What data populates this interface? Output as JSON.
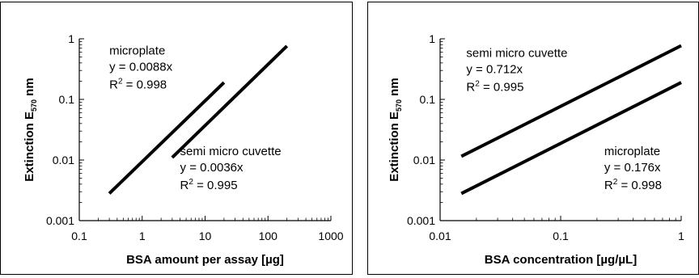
{
  "chart_data": [
    {
      "type": "line",
      "title": "",
      "xlabel": "BSA amount per assay [µg]",
      "ylabel": "Extinction E570 nm",
      "ylabel_main": "Extinction E",
      "ylabel_sub": "570",
      "ylabel_tail": " nm",
      "xscale": "log",
      "yscale": "log",
      "xlim": [
        0.1,
        1000
      ],
      "ylim": [
        0.001,
        1
      ],
      "x_ticks": [
        "0.1",
        "1",
        "10",
        "100",
        "1000"
      ],
      "y_ticks": [
        "0.001",
        "0.01",
        "0.1",
        "1"
      ],
      "grid": false,
      "series": [
        {
          "x": [
            0.3,
            20
          ],
          "y": [
            0.0028,
            0.19
          ]
        },
        {
          "x": [
            3,
            200
          ],
          "y": [
            0.011,
            0.76
          ]
        }
      ],
      "annotations": [
        {
          "lines": [
            "microplate",
            "y = 0.0088x"
          ],
          "r2_base": "R",
          "r2_sup": "2",
          "r2_value": " = 0.998",
          "x": 0.3,
          "y": 0.55
        },
        {
          "lines": [
            "semi micro cuvette",
            "y = 0.0036x"
          ],
          "r2_base": "R",
          "r2_sup": "2",
          "r2_value": " = 0.995",
          "x": 4,
          "y": 0.012
        }
      ]
    },
    {
      "type": "line",
      "title": "",
      "xlabel": "BSA concentration [µg/µL]",
      "ylabel": "Extinction E570 nm",
      "ylabel_main": "Extinction E",
      "ylabel_sub": "570",
      "ylabel_tail": " nm",
      "xscale": "log",
      "yscale": "log",
      "xlim": [
        0.01,
        1
      ],
      "ylim": [
        0.001,
        1
      ],
      "x_ticks": [
        "0.01",
        "0.1",
        "1"
      ],
      "y_ticks": [
        "0.001",
        "0.01",
        "0.1",
        "1"
      ],
      "grid": false,
      "series": [
        {
          "x": [
            0.015,
            1
          ],
          "y": [
            0.0115,
            0.77
          ]
        },
        {
          "x": [
            0.015,
            1
          ],
          "y": [
            0.0028,
            0.19
          ]
        }
      ],
      "annotations": [
        {
          "lines": [
            "semi micro cuvette",
            "y = 0.712x"
          ],
          "r2_base": "R",
          "r2_sup": "2",
          "r2_value": " = 0.995",
          "x": 0.0165,
          "y": 0.5
        },
        {
          "lines": [
            "microplate",
            "y = 0.176x"
          ],
          "r2_base": "R",
          "r2_sup": "2",
          "r2_value": " = 0.998",
          "x": 0.23,
          "y": 0.012
        }
      ]
    }
  ]
}
